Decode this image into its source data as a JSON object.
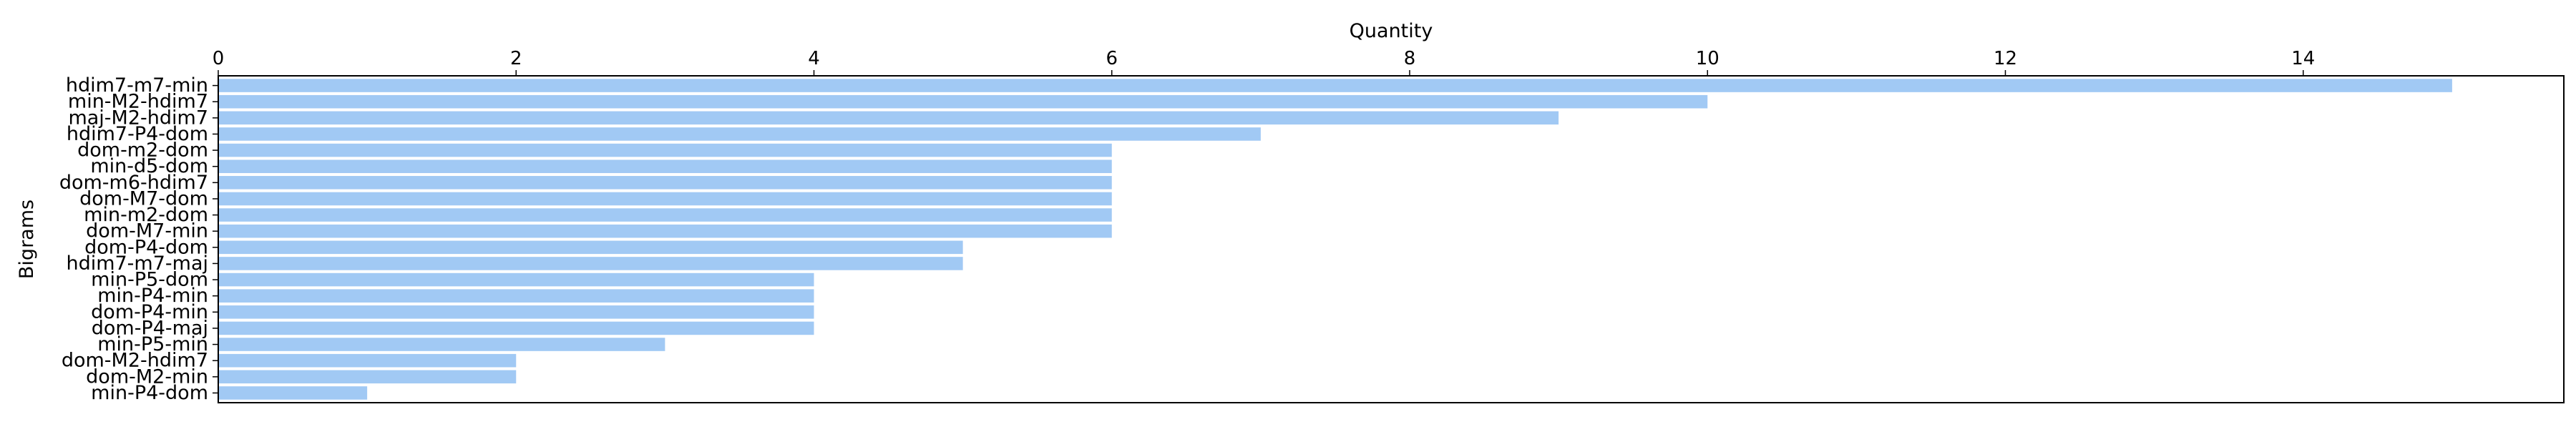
{
  "chart_data": {
    "type": "bar",
    "orientation": "horizontal",
    "categories": [
      "hdim7-m7-min",
      "min-M2-hdim7",
      "maj-M2-hdim7",
      "hdim7-P4-dom",
      "dom-m2-dom",
      "min-d5-dom",
      "dom-m6-hdim7",
      "dom-M7-dom",
      "min-m2-dom",
      "dom-M7-min",
      "dom-P4-dom",
      "hdim7-m7-maj",
      "min-P5-dom",
      "min-P4-min",
      "dom-P4-min",
      "dom-P4-maj",
      "min-P5-min",
      "dom-M2-hdim7",
      "dom-M2-min",
      "min-P4-dom"
    ],
    "values": [
      15,
      10,
      9,
      7,
      6,
      6,
      6,
      6,
      6,
      6,
      5,
      5,
      4,
      4,
      4,
      4,
      3,
      2,
      2,
      1
    ],
    "title": "",
    "xlabel": "Quantity",
    "ylabel": "Bigrams",
    "xlim": [
      0,
      15.75
    ],
    "xticks": [
      0,
      2,
      4,
      6,
      8,
      10,
      12,
      14
    ],
    "x_axis_position": "top",
    "grid": false,
    "legend": "none",
    "bar_color": "#a1c9f4",
    "axis_color": "#000000"
  }
}
